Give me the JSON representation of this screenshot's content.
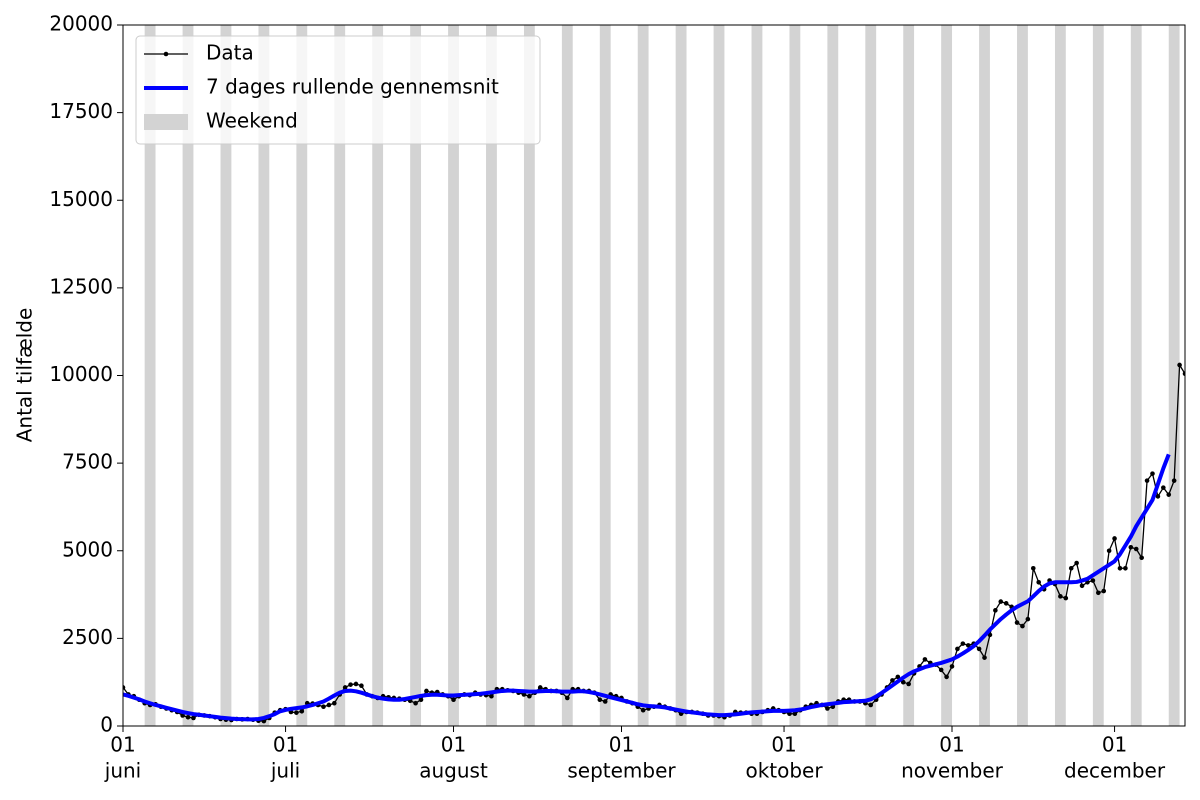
{
  "chart_data": {
    "type": "line",
    "ylabel": "Antal tilfælde",
    "x": [
      "06-01",
      "06-02",
      "06-03",
      "06-04",
      "06-05",
      "06-06",
      "06-07",
      "06-08",
      "06-09",
      "06-10",
      "06-11",
      "06-12",
      "06-13",
      "06-14",
      "06-15",
      "06-16",
      "06-17",
      "06-18",
      "06-19",
      "06-20",
      "06-21",
      "06-22",
      "06-23",
      "06-24",
      "06-25",
      "06-26",
      "06-27",
      "06-28",
      "06-29",
      "06-30",
      "07-01",
      "07-02",
      "07-03",
      "07-04",
      "07-05",
      "07-06",
      "07-07",
      "07-08",
      "07-09",
      "07-10",
      "07-11",
      "07-12",
      "07-13",
      "07-14",
      "07-15",
      "07-16",
      "07-17",
      "07-18",
      "07-19",
      "07-20",
      "07-21",
      "07-22",
      "07-23",
      "07-24",
      "07-25",
      "07-26",
      "07-27",
      "07-28",
      "07-29",
      "07-30",
      "07-31",
      "08-01",
      "08-02",
      "08-03",
      "08-04",
      "08-05",
      "08-06",
      "08-07",
      "08-08",
      "08-09",
      "08-10",
      "08-11",
      "08-12",
      "08-13",
      "08-14",
      "08-15",
      "08-16",
      "08-17",
      "08-18",
      "08-19",
      "08-20",
      "08-21",
      "08-22",
      "08-23",
      "08-24",
      "08-25",
      "08-26",
      "08-27",
      "08-28",
      "08-29",
      "08-30",
      "08-31",
      "09-01",
      "09-02",
      "09-03",
      "09-04",
      "09-05",
      "09-06",
      "09-07",
      "09-08",
      "09-09",
      "09-10",
      "09-11",
      "09-12",
      "09-13",
      "09-14",
      "09-15",
      "09-16",
      "09-17",
      "09-18",
      "09-19",
      "09-20",
      "09-21",
      "09-22",
      "09-23",
      "09-24",
      "09-25",
      "09-26",
      "09-27",
      "09-28",
      "09-29",
      "09-30",
      "10-01",
      "10-02",
      "10-03",
      "10-04",
      "10-05",
      "10-06",
      "10-07",
      "10-08",
      "10-09",
      "10-10",
      "10-11",
      "10-12",
      "10-13",
      "10-14",
      "10-15",
      "10-16",
      "10-17",
      "10-18",
      "10-19",
      "10-20",
      "10-21",
      "10-22",
      "10-23",
      "10-24",
      "10-25",
      "10-26",
      "10-27",
      "10-28",
      "10-29",
      "10-30",
      "10-31",
      "11-01",
      "11-02",
      "11-03",
      "11-04",
      "11-05",
      "11-06",
      "11-07",
      "11-08",
      "11-09",
      "11-10",
      "11-11",
      "11-12",
      "11-13",
      "11-14",
      "11-15",
      "11-16",
      "11-17",
      "11-18",
      "11-19",
      "11-20",
      "11-21",
      "11-22",
      "11-23",
      "11-24",
      "11-25",
      "11-26",
      "11-27",
      "11-28",
      "11-29",
      "11-30",
      "12-01",
      "12-02",
      "12-03",
      "12-04",
      "12-05",
      "12-06",
      "12-07",
      "12-08",
      "12-09",
      "12-10",
      "12-11",
      "12-12",
      "12-13",
      "12-14"
    ],
    "series": [
      {
        "name": "Data",
        "color": "#000000",
        "marker": true,
        "values": [
          1100,
          900,
          850,
          750,
          650,
          600,
          620,
          550,
          500,
          450,
          400,
          300,
          250,
          230,
          320,
          300,
          280,
          250,
          200,
          180,
          170,
          200,
          190,
          200,
          180,
          150,
          140,
          230,
          380,
          450,
          480,
          400,
          380,
          420,
          650,
          640,
          600,
          550,
          600,
          650,
          900,
          1100,
          1180,
          1200,
          1150,
          900,
          850,
          800,
          850,
          820,
          800,
          780,
          750,
          720,
          650,
          750,
          1000,
          950,
          970,
          900,
          850,
          750,
          850,
          900,
          880,
          950,
          900,
          880,
          850,
          1050,
          1050,
          1020,
          1000,
          950,
          900,
          850,
          950,
          1100,
          1050,
          1000,
          1000,
          950,
          800,
          1050,
          1050,
          1000,
          1000,
          950,
          750,
          700,
          900,
          850,
          800,
          700,
          650,
          550,
          450,
          500,
          550,
          600,
          550,
          500,
          450,
          350,
          400,
          400,
          380,
          350,
          300,
          300,
          280,
          250,
          300,
          400,
          380,
          380,
          350,
          350,
          400,
          450,
          500,
          450,
          400,
          350,
          350,
          450,
          550,
          600,
          650,
          600,
          500,
          550,
          700,
          750,
          750,
          700,
          700,
          650,
          600,
          750,
          900,
          1100,
          1300,
          1400,
          1250,
          1200,
          1500,
          1700,
          1900,
          1800,
          1750,
          1600,
          1400,
          1700,
          2200,
          2350,
          2300,
          2350,
          2200,
          1950,
          2600,
          3300,
          3550,
          3500,
          3400,
          2950,
          2850,
          3050,
          4500,
          4100,
          3900,
          4150,
          4050,
          3700,
          3650,
          4500,
          4650,
          4000,
          4100,
          4150,
          3800,
          3850,
          5000,
          5350,
          4500,
          4500,
          5100,
          5050,
          4800,
          7000,
          7200,
          6550,
          6800,
          6600,
          7000,
          10300,
          10050
        ]
      },
      {
        "name": "7 dages rullende gennemsnit",
        "color": "#0000ff",
        "marker": false,
        "values": [
          900,
          860,
          810,
          760,
          700,
          650,
          600,
          560,
          520,
          480,
          440,
          400,
          370,
          340,
          320,
          300,
          280,
          260,
          240,
          225,
          210,
          200,
          195,
          190,
          190,
          200,
          230,
          280,
          340,
          420,
          460,
          490,
          510,
          530,
          560,
          600,
          650,
          700,
          780,
          870,
          950,
          1000,
          1010,
          990,
          950,
          900,
          850,
          810,
          780,
          760,
          750,
          750,
          770,
          800,
          830,
          860,
          880,
          890,
          890,
          880,
          870,
          870,
          880,
          890,
          900,
          910,
          920,
          940,
          960,
          980,
          1000,
          1010,
          1010,
          1000,
          990,
          980,
          980,
          990,
          1000,
          1000,
          990,
          980,
          980,
          980,
          990,
          990,
          970,
          940,
          900,
          860,
          820,
          780,
          740,
          700,
          660,
          620,
          590,
          570,
          560,
          550,
          530,
          500,
          470,
          440,
          410,
          390,
          370,
          350,
          330,
          320,
          310,
          310,
          320,
          330,
          350,
          370,
          390,
          400,
          410,
          420,
          430,
          430,
          430,
          440,
          450,
          470,
          500,
          540,
          570,
          600,
          620,
          640,
          660,
          680,
          690,
          700,
          710,
          720,
          760,
          840,
          940,
          1050,
          1160,
          1270,
          1380,
          1480,
          1560,
          1620,
          1680,
          1720,
          1760,
          1800,
          1850,
          1900,
          1980,
          2070,
          2170,
          2280,
          2420,
          2580,
          2750,
          2900,
          3050,
          3180,
          3300,
          3400,
          3480,
          3560,
          3700,
          3850,
          3980,
          4070,
          4100,
          4100,
          4100,
          4100,
          4110,
          4150,
          4200,
          4300,
          4400,
          4500,
          4600,
          4700,
          4900,
          5150,
          5400,
          5700,
          5950,
          6200,
          6450,
          6900,
          7350,
          7750,
          null,
          null,
          null
        ]
      }
    ],
    "weekend": {
      "name": "Weekend",
      "color": "#d3d3d3",
      "starts": [
        "06-05",
        "06-12",
        "06-19",
        "06-26",
        "07-03",
        "07-10",
        "07-17",
        "07-24",
        "07-31",
        "08-07",
        "08-14",
        "08-21",
        "08-28",
        "09-04",
        "09-11",
        "09-18",
        "09-25",
        "10-02",
        "10-09",
        "10-16",
        "10-23",
        "10-30",
        "11-06",
        "11-13",
        "11-20",
        "11-27",
        "12-04",
        "12-11"
      ]
    },
    "xlim": [
      "06-01",
      "12-14"
    ],
    "xticks": [
      {
        "value": "06-01",
        "label": [
          "01",
          "juni"
        ]
      },
      {
        "value": "07-01",
        "label": [
          "01",
          "juli"
        ]
      },
      {
        "value": "08-01",
        "label": [
          "01",
          "august"
        ]
      },
      {
        "value": "09-01",
        "label": [
          "01",
          "september"
        ]
      },
      {
        "value": "10-01",
        "label": [
          "01",
          "oktober"
        ]
      },
      {
        "value": "11-01",
        "label": [
          "01",
          "november"
        ]
      },
      {
        "value": "12-01",
        "label": [
          "01",
          "december"
        ]
      }
    ],
    "ylim": [
      0,
      20000
    ],
    "yticks": [
      0,
      2500,
      5000,
      7500,
      10000,
      12500,
      15000,
      17500,
      20000
    ],
    "legend": "upper left"
  }
}
